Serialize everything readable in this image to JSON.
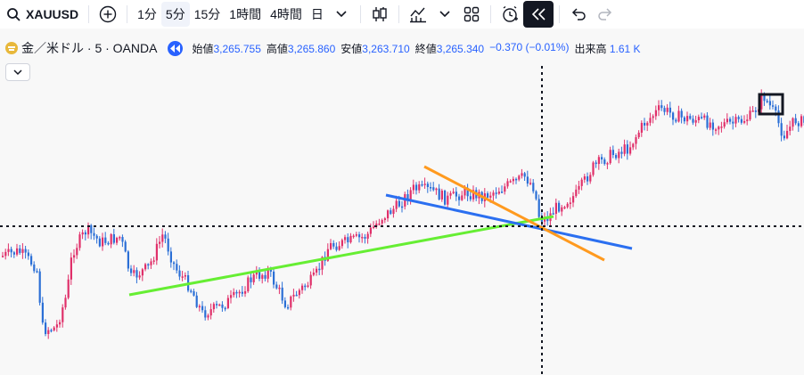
{
  "toolbar": {
    "symbol": "XAUUSD",
    "intervals": [
      "1分",
      "5分",
      "15分",
      "1時間",
      "4時間",
      "日"
    ],
    "active_interval": "5分"
  },
  "legend": {
    "title": "金／米ドル · 5 · OANDA",
    "open_label": "始値",
    "open_value": "3,265.755",
    "high_label": "高値",
    "high_value": "3,265.860",
    "low_label": "安値",
    "low_value": "3,263.710",
    "close_label": "終値",
    "close_value": "3,265.340",
    "change": "−0.370 (−0.01%)",
    "volume_label": "出来高",
    "volume_value": "1.61 K"
  },
  "colors": {
    "up": "#e0306a",
    "down": "#2b6fd6",
    "trendline_green": "#66ee33",
    "trendline_blue": "#2b6ff0",
    "trendline_orange": "#ff9a1f",
    "accent": "#2962ff"
  },
  "icons": [
    "search-icon",
    "add-symbol-icon",
    "chevron-down-icon",
    "candles-icon",
    "indicators-icon",
    "layout-icon",
    "alert-icon",
    "replay-icon",
    "undo-icon",
    "redo-icon",
    "gold-coin-icon"
  ]
}
